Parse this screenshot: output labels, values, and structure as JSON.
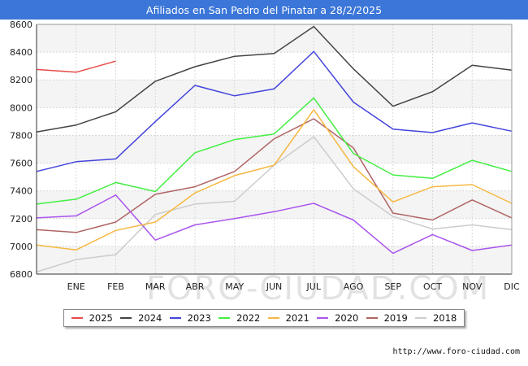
{
  "title": "Afiliados en San Pedro del Pinatar a 28/2/2025",
  "source": "http://www.foro-ciudad.com",
  "watermark": "FORO-CIUDAD.COM",
  "chart_data": {
    "type": "line",
    "categories": [
      "",
      "ENE",
      "FEB",
      "MAR",
      "ABR",
      "MAY",
      "JUN",
      "JUL",
      "AGO",
      "SEP",
      "OCT",
      "NOV",
      "DIC"
    ],
    "ylim": [
      6800,
      8600
    ],
    "yticks": [
      6800,
      7000,
      7200,
      7400,
      7600,
      7800,
      8000,
      8200,
      8400,
      8600
    ],
    "grid": true,
    "legend_position": "bottom",
    "series": [
      {
        "name": "2025",
        "color": "#e84a4a",
        "values": [
          8275,
          8255,
          8335,
          null,
          null,
          null,
          null,
          null,
          null,
          null,
          null,
          null,
          null
        ]
      },
      {
        "name": "2024",
        "color": "#444444",
        "values": [
          7825,
          7875,
          7970,
          8190,
          8295,
          8370,
          8390,
          8585,
          8280,
          8010,
          8115,
          8305,
          8270
        ]
      },
      {
        "name": "2023",
        "color": "#4444dd",
        "values": [
          7540,
          7610,
          7630,
          7900,
          8160,
          8085,
          8135,
          8405,
          8040,
          7845,
          7820,
          7890,
          7830
        ]
      },
      {
        "name": "2022",
        "color": "#44ee44",
        "values": [
          7305,
          7340,
          7460,
          7395,
          7675,
          7770,
          7810,
          8070,
          7670,
          7515,
          7490,
          7620,
          7540
        ]
      },
      {
        "name": "2021",
        "color": "#f5b841",
        "values": [
          7010,
          6975,
          7115,
          7175,
          7385,
          7510,
          7585,
          7985,
          7575,
          7320,
          7430,
          7445,
          7310
        ]
      },
      {
        "name": "2020",
        "color": "#aa55ee",
        "values": [
          7205,
          7220,
          7370,
          7045,
          7155,
          7200,
          7250,
          7310,
          7190,
          6950,
          7085,
          6970,
          7010
        ]
      },
      {
        "name": "2019",
        "color": "#b06464",
        "values": [
          7120,
          7100,
          7175,
          7375,
          7430,
          7540,
          7775,
          7920,
          7710,
          7240,
          7190,
          7335,
          7205
        ]
      },
      {
        "name": "2018",
        "color": "#cccccc",
        "values": [
          6815,
          6905,
          6940,
          7230,
          7305,
          7325,
          7585,
          7790,
          7415,
          7215,
          7125,
          7155,
          7120
        ]
      }
    ]
  }
}
